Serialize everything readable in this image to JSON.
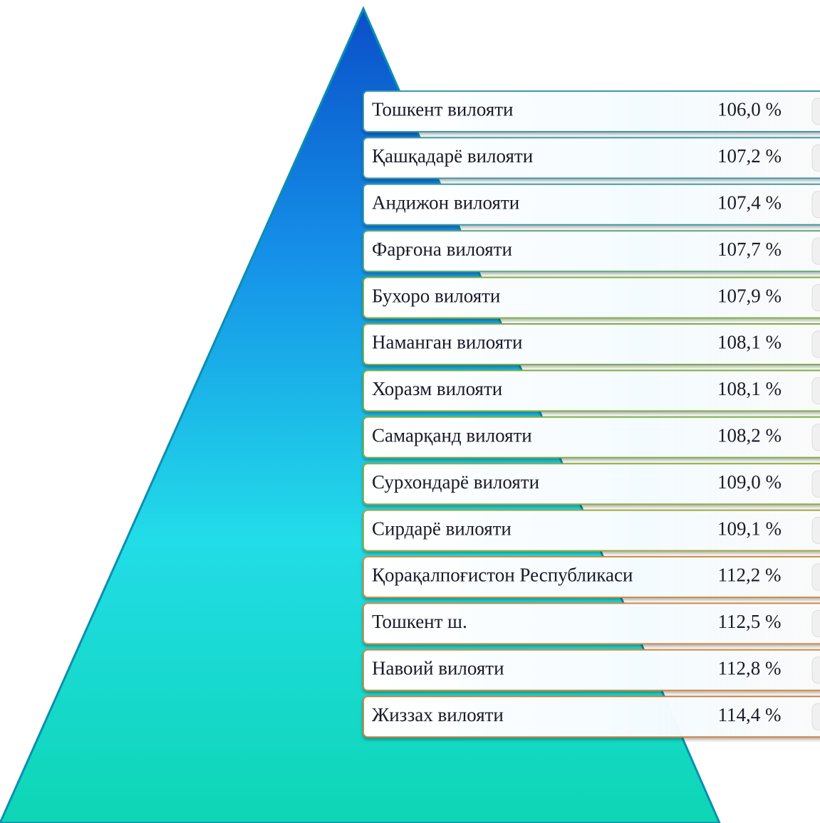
{
  "rows": [
    {
      "name": "Тошкент  вилояти",
      "value": "106,0 %"
    },
    {
      "name": "Қашқадарё  вилояти",
      "value": "107,2 %"
    },
    {
      "name": "Андижон вилояти",
      "value": "107,4 %"
    },
    {
      "name": "Фарғона вилояти",
      "value": "107,7 %"
    },
    {
      "name": "Бухоро  вилояти",
      "value": "107,9 %"
    },
    {
      "name": "Наманган  вилояти",
      "value": "108,1 %"
    },
    {
      "name": "Хоразм  вилояти",
      "value": "108,1 %"
    },
    {
      "name": "Самарқанд вилояти",
      "value": "108,2 %"
    },
    {
      "name": "Сурхондарё  вилояти",
      "value": "109,0 %"
    },
    {
      "name": "Сирдарё  вилояти",
      "value": "109,1 %"
    },
    {
      "name": "Қорақалпоғистон Республикаси",
      "value": "112,2 %"
    },
    {
      "name": "Тошкент  ш.",
      "value": "112,5 %"
    },
    {
      "name": "Навоий вилояти",
      "value": "112,8 %"
    },
    {
      "name": "Жиззах  вилояти",
      "value": "114,4 %"
    }
  ]
}
